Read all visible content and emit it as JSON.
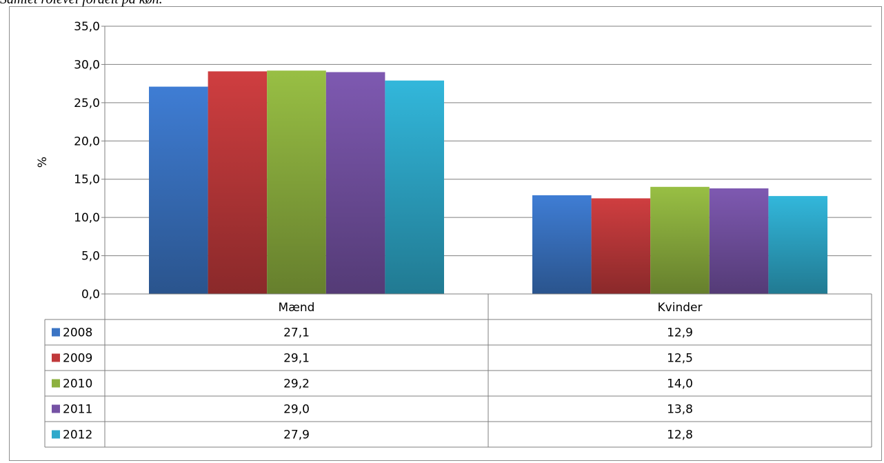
{
  "caption": "Samlet rolevel fordelt på køn.",
  "chart_data": {
    "type": "bar",
    "ylabel": "%",
    "ylim": [
      0,
      35
    ],
    "yticks": [
      "0,0",
      "5,0",
      "10,0",
      "15,0",
      "20,0",
      "25,0",
      "30,0",
      "35,0"
    ],
    "grid": true,
    "legend": "data table",
    "categories": [
      "Mænd",
      "Kvinder"
    ],
    "series": [
      {
        "name": "2008",
        "values": [
          27.1,
          12.9
        ],
        "labels": [
          "27,1",
          "12,9"
        ],
        "color": "#3a74c4"
      },
      {
        "name": "2009",
        "values": [
          29.1,
          12.5
        ],
        "labels": [
          "29,1",
          "12,5"
        ],
        "color": "#c0393b"
      },
      {
        "name": "2010",
        "values": [
          29.2,
          14.0
        ],
        "labels": [
          "29,2",
          "14,0"
        ],
        "color": "#8db13f"
      },
      {
        "name": "2011",
        "values": [
          29.0,
          13.8
        ],
        "labels": [
          "29,0",
          "13,8"
        ],
        "color": "#7552a4"
      },
      {
        "name": "2012",
        "values": [
          27.9,
          12.8
        ],
        "labels": [
          "27,9",
          "12,8"
        ],
        "color": "#2ea9cb"
      }
    ]
  }
}
